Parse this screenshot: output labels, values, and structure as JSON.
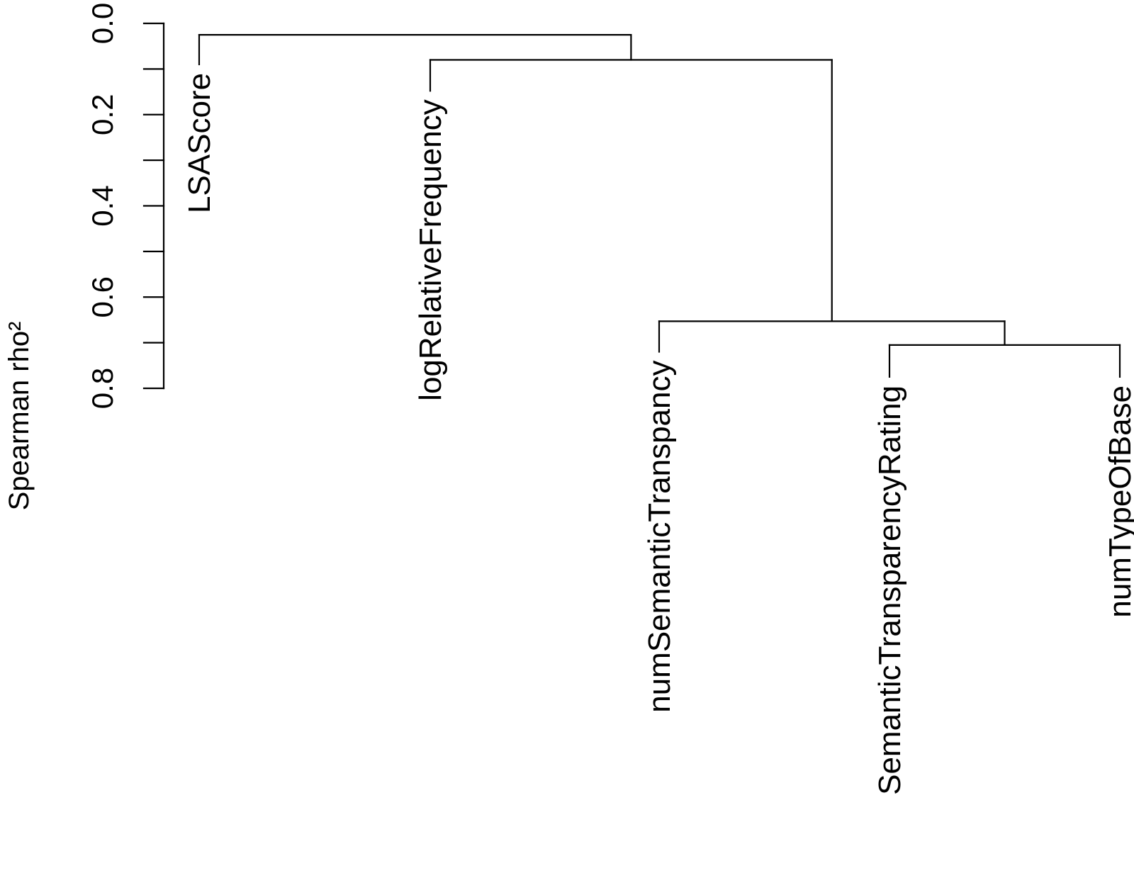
{
  "chart_data": {
    "type": "dendrogram",
    "orientation": "top-down",
    "ylabel": "Spearman rho²",
    "ylim": [
      0.0,
      0.8
    ],
    "y_ticks": [
      0.0,
      0.2,
      0.4,
      0.6,
      0.8
    ],
    "y_tick_labels": [
      "0.0",
      "0.2",
      "0.4",
      "0.6",
      "0.8"
    ],
    "y_axis_reversed": true,
    "leaves": [
      {
        "label": "LSAScore",
        "bottom": 0.09
      },
      {
        "label": "logRelativeFrequency",
        "bottom": 0.148
      },
      {
        "label": "numSemanticTranspancy",
        "bottom": 0.72
      },
      {
        "label": "SemanticTransparencyRating",
        "bottom": 0.775
      },
      {
        "label": "numTypeOfBase",
        "bottom": 0.775
      }
    ],
    "merges": [
      {
        "left": "SemanticTransparencyRating",
        "right": "numTypeOfBase",
        "height": 0.705
      },
      {
        "left": "numSemanticTranspancy",
        "right": "merge-1",
        "height": 0.653
      },
      {
        "left": "logRelativeFrequency",
        "right": "merge-2",
        "height": 0.08
      },
      {
        "left": "LSAScore",
        "right": "merge-3",
        "height": 0.025
      }
    ],
    "grid": false,
    "legend": "none"
  }
}
